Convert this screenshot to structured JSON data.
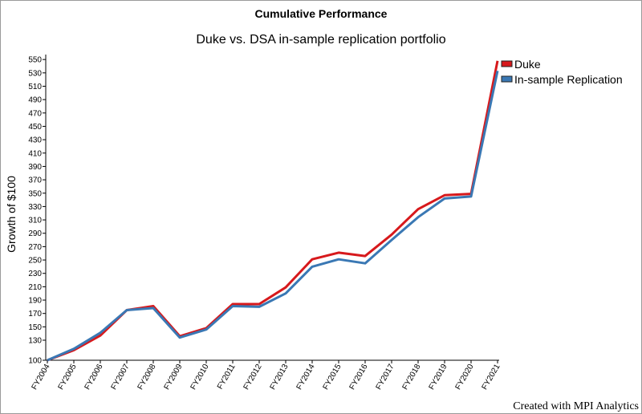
{
  "chart_data": {
    "type": "line",
    "title": "Cumulative Performance",
    "subtitle": "Duke vs. DSA in-sample replication portfolio",
    "ylabel": "Growth of $100",
    "xlabel": "",
    "ylim": [
      100,
      555
    ],
    "yticks": [
      100,
      130,
      150,
      170,
      190,
      210,
      230,
      250,
      270,
      290,
      310,
      330,
      350,
      370,
      390,
      410,
      430,
      450,
      470,
      490,
      510,
      530,
      550
    ],
    "categories": [
      "FY2004",
      "FY2005",
      "FY2006",
      "FY2007",
      "FY2008",
      "FY2009",
      "FY2010",
      "FY2011",
      "FY2012",
      "FY2013",
      "FY2014",
      "FY2015",
      "FY2016",
      "FY2017",
      "FY2018",
      "FY2019",
      "FY2020",
      "FY2021"
    ],
    "series": [
      {
        "name": "Duke",
        "color": "#d7191c",
        "values": [
          100,
          115,
          137,
          175,
          181,
          136,
          148,
          184,
          184,
          209,
          251,
          261,
          256,
          288,
          326,
          347,
          349,
          548
        ]
      },
      {
        "name": "In-sample Replication",
        "color": "#3a78b4",
        "values": [
          100,
          117,
          141,
          175,
          178,
          134,
          146,
          181,
          180,
          200,
          240,
          251,
          245,
          280,
          314,
          342,
          345,
          533
        ]
      }
    ],
    "legend_position": "top-right",
    "grid": false
  },
  "footer": "Created with MPI Analytics"
}
